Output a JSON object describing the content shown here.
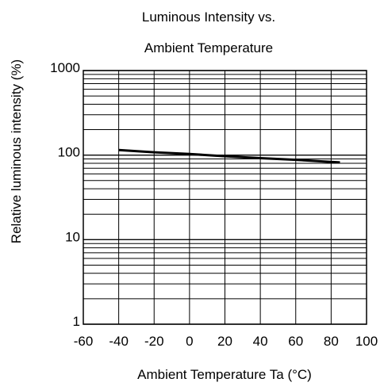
{
  "chart_data": {
    "type": "line",
    "title_line1": "Luminous Intensity vs.",
    "title_line2": "Ambient Temperature",
    "xlabel": "Ambient Temperature Ta (°C)",
    "ylabel": "Relative luminous intensity (%)",
    "xlim": [
      -60,
      100
    ],
    "ylim": [
      1,
      1000
    ],
    "yscale": "log",
    "grid": true,
    "x_ticks": [
      -60,
      -40,
      -20,
      0,
      20,
      40,
      60,
      80,
      100
    ],
    "x_tick_labels": [
      "-60",
      "-40",
      "-20",
      "0",
      "20",
      "40",
      "60",
      "80",
      "100"
    ],
    "y_ticks": [
      1,
      10,
      100,
      1000
    ],
    "y_tick_labels": [
      "1",
      "10",
      "100",
      "1000"
    ],
    "series": [
      {
        "x": [
          -40,
          -20,
          0,
          20,
          40,
          60,
          80,
          85
        ],
        "y": [
          115,
          108,
          103,
          97,
          92,
          88,
          83,
          82
        ]
      }
    ],
    "colors": {
      "line": "#000000",
      "grid": "#000000"
    }
  }
}
